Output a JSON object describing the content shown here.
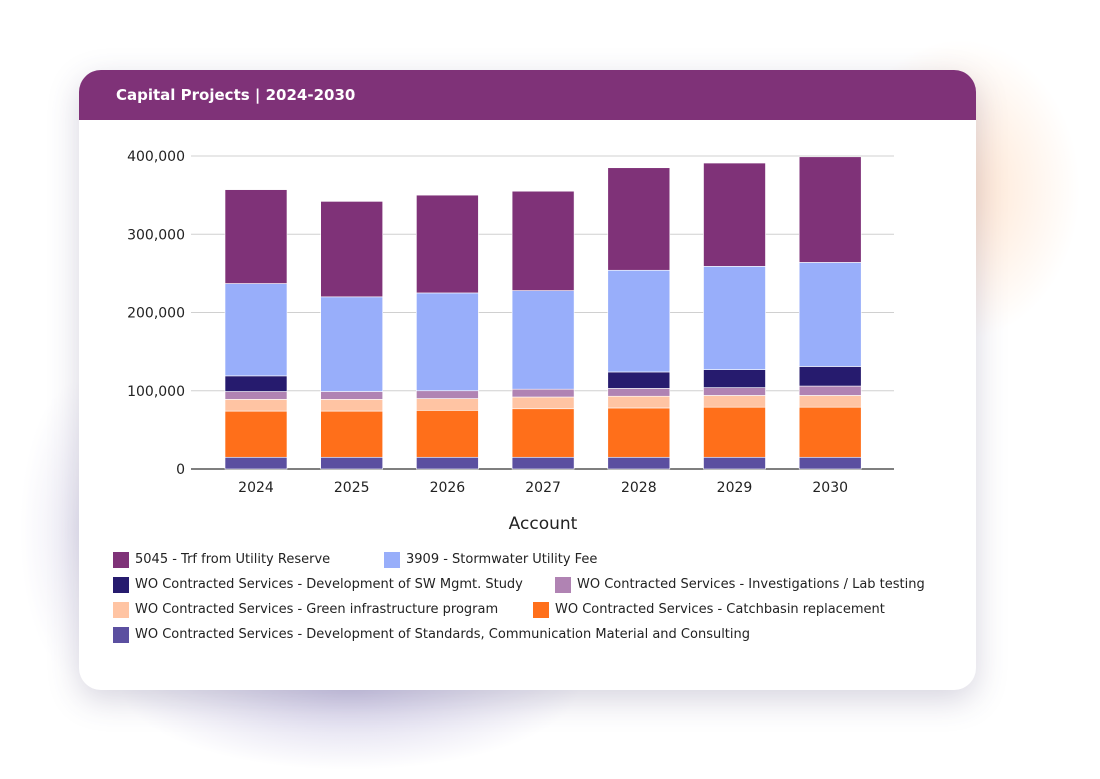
{
  "card": {
    "title": "Capital Projects | 2024-2030",
    "header_color": "#7f3278"
  },
  "chart_data": {
    "type": "bar",
    "stacked": true,
    "categories": [
      "2024",
      "2025",
      "2026",
      "2027",
      "2028",
      "2029",
      "2030"
    ],
    "xlabel": "Account",
    "ylabel": "",
    "ylim": [
      0,
      400000
    ],
    "yticks": [
      0,
      100000,
      200000,
      300000,
      400000
    ],
    "ytick_labels": [
      "0",
      "100,000",
      "200,000",
      "300,000",
      "400,000"
    ],
    "grid": true,
    "legend_position": "bottom",
    "series": [
      {
        "name": "WO Contracted Services - Development of Standards, Communication Material and Consulting",
        "color": "#5b4fa0",
        "values": [
          15000,
          15000,
          15000,
          15000,
          15000,
          15000,
          15000
        ]
      },
      {
        "name": "WO Contracted Services - Catchbasin replacement",
        "color": "#ff6f1a",
        "values": [
          59000,
          59000,
          60000,
          62000,
          63000,
          64000,
          64000
        ]
      },
      {
        "name": "WO Contracted Services - Green infrastructure program",
        "color": "#ffc4a3",
        "values": [
          15000,
          15000,
          15000,
          15000,
          15000,
          15000,
          15000
        ]
      },
      {
        "name": "WO Contracted Services - Investigations / Lab testing",
        "color": "#b083b3",
        "values": [
          10000,
          10000,
          10000,
          10000,
          10000,
          10000,
          12000
        ]
      },
      {
        "name": "WO Contracted Services - Development of SW Mgmt. Study",
        "color": "#261b6e",
        "values": [
          20000,
          0,
          0,
          0,
          21000,
          23000,
          25000
        ]
      },
      {
        "name": "3909 - Stormwater Utility Fee",
        "color": "#98aefa",
        "values": [
          118000,
          121000,
          125000,
          126000,
          130000,
          132000,
          133000
        ]
      },
      {
        "name": "5045 - Trf from Utility Reserve",
        "color": "#7f3278",
        "values": [
          120000,
          122000,
          125000,
          127000,
          131000,
          132000,
          135000
        ]
      }
    ]
  },
  "legend": {
    "rows": [
      [
        {
          "label": "5045 - Trf from Utility Reserve",
          "color": "#7f3278",
          "width_hint": "wide"
        },
        {
          "label": "3909 - Stormwater Utility Fee",
          "color": "#98aefa"
        }
      ],
      [
        {
          "label": "WO Contracted Services - Development of SW Mgmt. Study",
          "color": "#261b6e"
        },
        {
          "label": "WO Contracted Services - Investigations / Lab testing",
          "color": "#b083b3"
        }
      ],
      [
        {
          "label": "WO Contracted Services - Green infrastructure program",
          "color": "#ffc4a3"
        },
        {
          "label": "WO Contracted Services - Catchbasin replacement",
          "color": "#ff6f1a"
        }
      ],
      [
        {
          "label": "WO Contracted Services - Development of Standards, Communication Material and Consulting",
          "color": "#5b4fa0"
        }
      ]
    ]
  }
}
